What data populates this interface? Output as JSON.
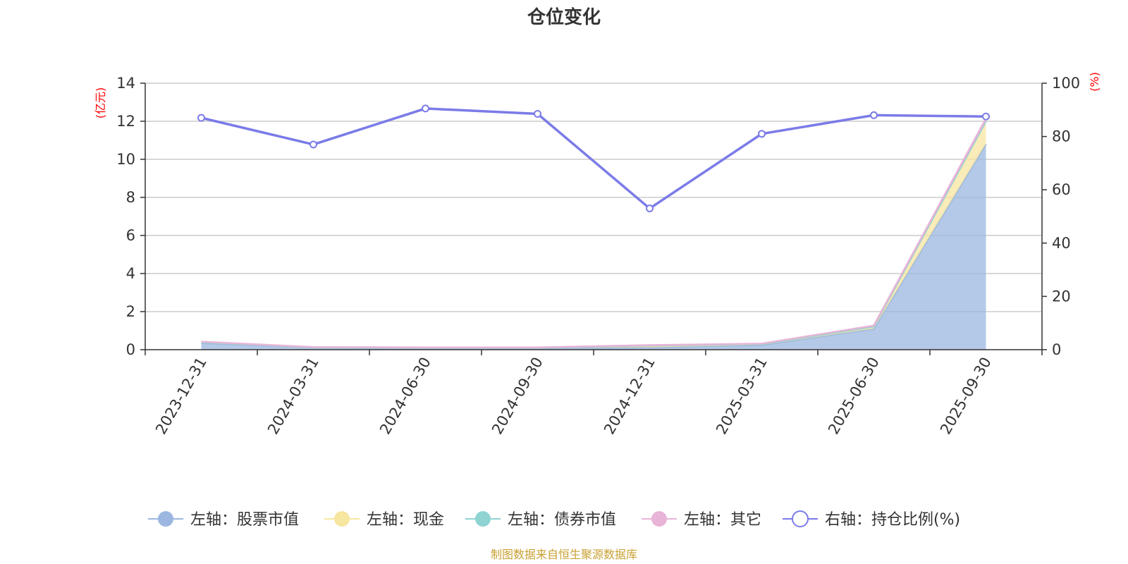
{
  "chart_data": {
    "type": "area",
    "title": "仓位变化",
    "categories": [
      "2023-12-31",
      "2024-03-31",
      "2024-06-30",
      "2024-09-30",
      "2024-12-31",
      "2025-03-31",
      "2025-06-30",
      "2025-09-30"
    ],
    "left_axis": {
      "unit": "(亿元)",
      "ylim": [
        0,
        14
      ],
      "ticks": [
        "0",
        "2",
        "4",
        "6",
        "8",
        "10",
        "12",
        "14"
      ]
    },
    "right_axis": {
      "unit": "(%)",
      "ylim": [
        0,
        100
      ],
      "ticks": [
        "0",
        "20",
        "40",
        "60",
        "80",
        "100"
      ]
    },
    "grid": true,
    "stacked": true,
    "series": [
      {
        "name": "左轴：股票市值",
        "axis": "left",
        "color": "#9bb7e0",
        "values": [
          0.35,
          0.11,
          0.09,
          0.09,
          0.12,
          0.24,
          1.1,
          10.8
        ]
      },
      {
        "name": "左轴：现金",
        "axis": "left",
        "color": "#f7e6a0",
        "values": [
          0.05,
          0.02,
          0.02,
          0.02,
          0.1,
          0.05,
          0.12,
          1.2
        ]
      },
      {
        "name": "左轴：债券市值",
        "axis": "left",
        "color": "#8fd3d3",
        "values": [
          0,
          0,
          0,
          0,
          0,
          0,
          0,
          0
        ]
      },
      {
        "name": "左轴：其它",
        "axis": "left",
        "color": "#e8b4d8",
        "values": [
          0.02,
          0.01,
          0.01,
          0.01,
          0.02,
          0.03,
          0.05,
          0.15
        ]
      },
      {
        "name": "右轴：持仓比例(%)",
        "axis": "right",
        "type": "line",
        "color": "#7b7be8",
        "values": [
          87,
          77,
          90.5,
          88.5,
          53,
          81,
          88,
          87.5
        ]
      }
    ],
    "legend_position": "bottom",
    "source_note": "制图数据来自恒生聚源数据库"
  }
}
